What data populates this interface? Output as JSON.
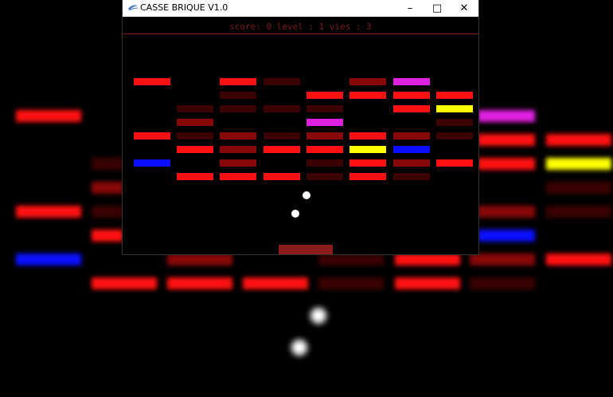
{
  "window": {
    "title": "CASSE BRIQUE V1.0",
    "controls": {
      "minimize": "–",
      "maximize": "□",
      "close": "✕"
    }
  },
  "hud": {
    "text": "score: 0 level : 1 vies : 3"
  },
  "colors": {
    "red": "#ff1111",
    "dark_red": "#880808",
    "darker_red": "#3a0202",
    "magenta": "#e020e0",
    "yellow": "#ffff00",
    "blue": "#0a10ff",
    "paddle": "#8a1c1c",
    "ball": "#ffffff",
    "hud": "#7f1a1a"
  },
  "bricks": [
    [
      "red",
      null,
      "red",
      "darker_red",
      "null",
      "dark_red",
      "magenta",
      null
    ],
    [
      null,
      null,
      "darker_red",
      null,
      "red",
      "red",
      "red",
      "red"
    ],
    [
      null,
      "darker_red",
      "darker_red",
      "darker_red",
      "darker_red",
      null,
      "red",
      "yellow"
    ],
    [
      null,
      "dark_red",
      null,
      null,
      "magenta",
      null,
      null,
      "darker_red"
    ],
    [
      "red",
      "darker_red",
      "dark_red",
      "darker_red",
      "dark_red",
      "red",
      "dark_red",
      "darker_red"
    ],
    [
      null,
      "red",
      "dark_red",
      "red",
      "red",
      "yellow",
      "blue",
      null
    ],
    [
      "blue",
      null,
      "dark_red",
      null,
      "darker_red",
      "red",
      "dark_red",
      "red"
    ],
    [
      null,
      "red",
      "red",
      "red",
      "darker_red",
      "red",
      "darker_red",
      null
    ]
  ],
  "balls_visible": 2,
  "paddle_visible": true
}
